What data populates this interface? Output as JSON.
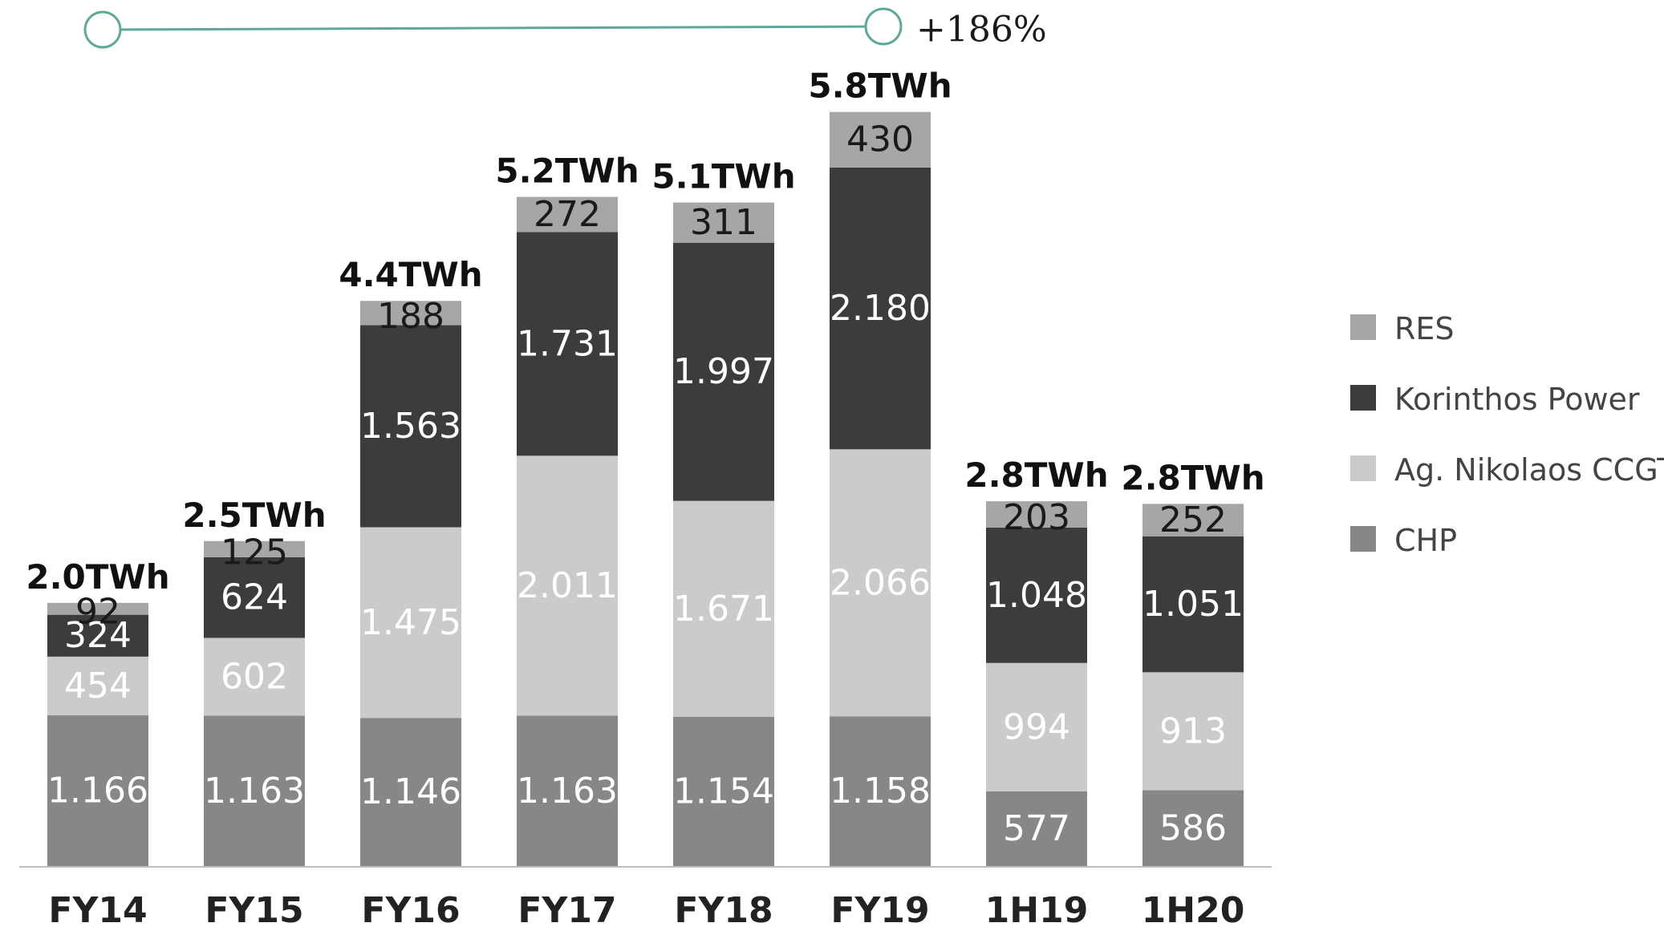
{
  "chart_data": {
    "type": "bar",
    "stacked": true,
    "categories": [
      "FY14",
      "FY15",
      "FY16",
      "FY17",
      "FY18",
      "FY19",
      "1H19",
      "1H20"
    ],
    "series": [
      {
        "name": "CHP",
        "color": "#878787",
        "label_color": "#ffffff",
        "values": [
          1166,
          1163,
          1146,
          1163,
          1154,
          1158,
          577,
          586
        ],
        "labels": [
          "1.166",
          "1.163",
          "1.146",
          "1.163",
          "1.154",
          "1.158",
          "577",
          "586"
        ]
      },
      {
        "name": "Ag. Nikolaos CCGT",
        "color": "#cbcbcb",
        "label_color": "#ffffff",
        "values": [
          454,
          602,
          1475,
          2011,
          1671,
          2066,
          994,
          913
        ],
        "labels": [
          "454",
          "602",
          "1.475",
          "2.011",
          "1.671",
          "2.066",
          "994",
          "913"
        ]
      },
      {
        "name": "Korinthos Power",
        "color": "#3c3c3c",
        "label_color": "#ffffff",
        "values": [
          324,
          624,
          1563,
          1731,
          1997,
          2180,
          1048,
          1051
        ],
        "labels": [
          "324",
          "624",
          "1.563",
          "1.731",
          "1.997",
          "2.180",
          "1.048",
          "1.051"
        ]
      },
      {
        "name": "RES",
        "color": "#a6a6a6",
        "label_color": "#1a1a1a",
        "values": [
          92,
          125,
          188,
          272,
          311,
          430,
          203,
          252
        ],
        "labels": [
          "92",
          "125",
          "188",
          "272",
          "311",
          "430",
          "203",
          "252"
        ]
      }
    ],
    "totals": [
      "2.0TWh",
      "2.5TWh",
      "4.4TWh",
      "5.2TWh",
      "5.1TWh",
      "5.8TWh",
      "2.8TWh",
      "2.8TWh"
    ],
    "ylim": [
      0,
      5850
    ],
    "grid": false,
    "legend_position": "right",
    "legend_order": [
      "RES",
      "Korinthos Power",
      "Ag. Nikolaos CCGT",
      "CHP"
    ],
    "annotation": {
      "text": "+186%",
      "from": "FY14",
      "to": "FY19",
      "color": "#5fa89a"
    },
    "axis_color": "#bfbfbf",
    "total_label_color": "#111111"
  }
}
